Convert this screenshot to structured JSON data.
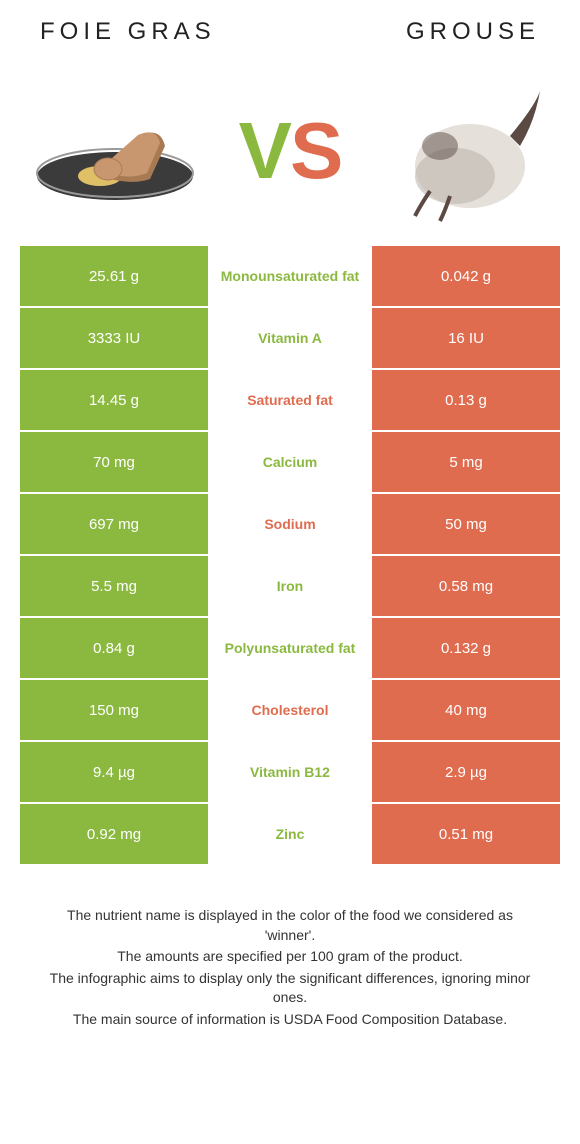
{
  "header": {
    "left_title": "Foie gras",
    "right_title": "Grouse"
  },
  "vs": {
    "v": "V",
    "s": "S"
  },
  "colors": {
    "left_bg": "#8bb940",
    "right_bg": "#e06c4f",
    "left_text_on_bg": "#ffffff",
    "right_text_on_bg": "#ffffff",
    "mid_left_color": "#8bb940",
    "mid_right_color": "#e06c4f"
  },
  "rows": [
    {
      "left": "25.61 g",
      "label": "Monounsaturated fat",
      "right": "0.042 g",
      "winner": "left"
    },
    {
      "left": "3333 IU",
      "label": "Vitamin A",
      "right": "16 IU",
      "winner": "left"
    },
    {
      "left": "14.45 g",
      "label": "Saturated fat",
      "right": "0.13 g",
      "winner": "right"
    },
    {
      "left": "70 mg",
      "label": "Calcium",
      "right": "5 mg",
      "winner": "left"
    },
    {
      "left": "697 mg",
      "label": "Sodium",
      "right": "50 mg",
      "winner": "right"
    },
    {
      "left": "5.5 mg",
      "label": "Iron",
      "right": "0.58 mg",
      "winner": "left"
    },
    {
      "left": "0.84 g",
      "label": "Polyunsaturated fat",
      "right": "0.132 g",
      "winner": "left"
    },
    {
      "left": "150 mg",
      "label": "Cholesterol",
      "right": "40 mg",
      "winner": "right"
    },
    {
      "left": "9.4 µg",
      "label": "Vitamin B12",
      "right": "2.9 µg",
      "winner": "left"
    },
    {
      "left": "0.92 mg",
      "label": "Zinc",
      "right": "0.51 mg",
      "winner": "left"
    }
  ],
  "footnotes": {
    "line1": "The nutrient name is displayed in the color of the food we considered as 'winner'.",
    "line2": "The amounts are specified per 100 gram of the product.",
    "line3": "The infographic aims to display only the significant differences, ignoring minor ones.",
    "line4": "The main source of information is USDA Food Composition Database."
  },
  "svg": {
    "foie": {
      "plate_fill": "#3b3b3b",
      "plate_stroke": "#9a9a9a",
      "meat_fill": "#c9976f",
      "meat_shadow": "#a87a54",
      "garnish": "#e0c067"
    },
    "grouse": {
      "body": "#e6e0da",
      "shadow": "#bcb6af",
      "dark": "#5b4a43"
    }
  }
}
